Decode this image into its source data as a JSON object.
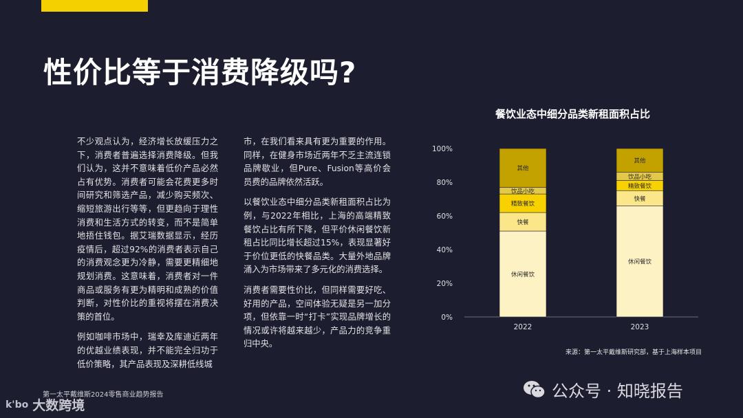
{
  "title": "性价比等于消费降级吗?",
  "column1": [
    "不少观点认为，经济增长放缓压力之下，消费者普遍选择消费降级。但我们认为，这并不意味着低价产品必然占有优势。消费者可能会花费更多时间研究和筛选产品，减少购买频次、缩短旅游出行等等，但更趋向于理性消费和生活方式的转变，而不是简单地捂住钱包。据艾瑞数据显示，经历疫情后，超过92%的消费者表示自己的消费观念更为冷静，需要更精细地规划消费。这意味着，消费者对一件商品或服务有更为精明和成熟的价值判断，对性价比的重视将摆在消费决策的首位。",
    "例如咖啡市场中，瑞幸及库迪近两年的优越业绩表现，并不能完全归功于低价策略，其产品表现及深耕低线城"
  ],
  "column2": [
    "市，在我们看来具有更为重要的作用。同样，在健身市场近两年不乏主流连锁品牌歇业，但Pure、Fusion等高价会员费的品牌依然活跃。",
    "以餐饮业态中细分品类新租面积占比为例，与2022年相比，上海的高端精致餐饮占比有所下降，但平价休闲餐饮新租占比同比增长超过15%，表现显著好于价位更低的快餐品类。大量外地品牌涌入为市场带来了多元化的消费选择。",
    "消费者需要性价比，但同样需要好吃、好用的产品，空间体验无疑是另一加分项，但依靠一时“打卡”实现品牌增长的情况或许将越来越少，产品力的竞争重归中央。"
  ],
  "chart_data": {
    "type": "bar",
    "stacked": true,
    "title": "餐饮业态中细分品类新租面积占比",
    "categories": [
      "2022",
      "2023"
    ],
    "ylim": [
      0,
      100
    ],
    "yticks": [
      "0%",
      "20%",
      "40%",
      "60%",
      "80%",
      "100%"
    ],
    "grid": false,
    "series": [
      {
        "name": "休闲餐饮",
        "color": "#fdf2c4",
        "values": [
          51,
          66
        ]
      },
      {
        "name": "快餐",
        "color": "#fbe68a",
        "values": [
          11,
          9
        ]
      },
      {
        "name": "精致餐饮",
        "color": "#f7d100",
        "values": [
          11,
          6
        ]
      },
      {
        "name": "饮品小吃",
        "color": "#e3c84a",
        "values": [
          4,
          5
        ]
      },
      {
        "name": "其他",
        "color": "#c3a200",
        "values": [
          23,
          14
        ]
      }
    ]
  },
  "source": "来源：第一太平戴维斯研究部，基于上海样本项目",
  "footer": {
    "report": "第一太平戴维斯2024零售商业趋势报告",
    "brand_mark": "k'bo",
    "brand_name": "大数跨境",
    "wechat": "公众号 · 知晓报告"
  }
}
